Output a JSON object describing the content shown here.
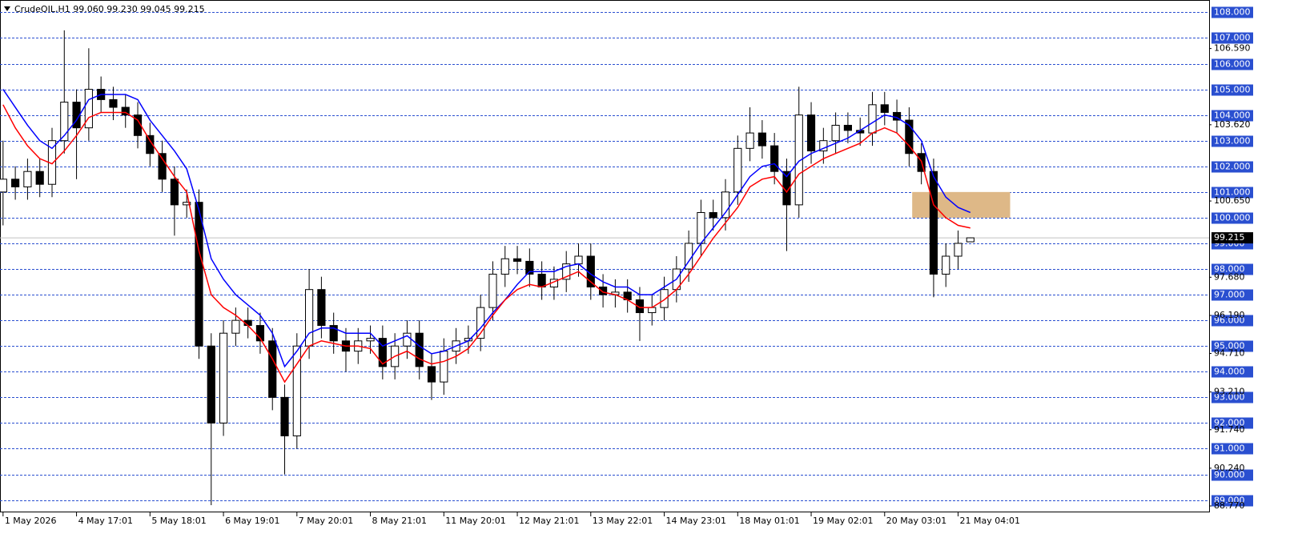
{
  "chart_data": {
    "type": "candlestick",
    "title": "CrudeOIL,H1  99.060 99.230 99.045 99.215",
    "x": [
      1,
      5,
      9,
      13,
      17,
      21,
      25,
      29,
      33,
      37,
      41,
      45,
      49,
      53,
      57,
      61,
      65,
      69,
      73,
      77,
      81,
      85,
      89,
      93,
      97,
      101,
      105,
      109,
      113,
      117,
      121,
      125,
      129,
      133,
      137,
      141,
      145,
      149,
      153,
      157,
      161,
      165,
      169,
      173,
      177,
      181,
      185,
      189,
      193,
      197,
      201,
      205,
      209,
      213,
      217,
      221,
      225,
      229,
      233,
      237,
      241,
      245,
      249,
      253,
      257,
      261,
      265,
      269,
      273,
      277,
      281,
      285,
      289,
      293,
      297,
      301,
      305,
      309,
      313,
      317
    ],
    "open": [
      101,
      101.5,
      101.2,
      101.8,
      101.3,
      103,
      104.5,
      103.5,
      105,
      104.6,
      104.3,
      104,
      103.2,
      102.5,
      101.5,
      100.5,
      100.6,
      95,
      92,
      95.5,
      96,
      95.8,
      95.2,
      93,
      91.5,
      95,
      97.2,
      95.8,
      95.2,
      94.8,
      95.2,
      95.3,
      94.2,
      95,
      95.5,
      94.2,
      93.6,
      94.8,
      95.2,
      95.3,
      96.5,
      97.8,
      98.4,
      98.3,
      97.8,
      97.3,
      97.6,
      98.2,
      98.5,
      97.3,
      97,
      97.1,
      96.8,
      96.3,
      96.5,
      97.2,
      98,
      99,
      100.2,
      100,
      101,
      102.7,
      103.3,
      102.8,
      101.8,
      100.5,
      104,
      102.6,
      103,
      103.6,
      103.4,
      103.3,
      104.4,
      104.1,
      103.8,
      102.5,
      101.8,
      97.8,
      98.5,
      99.06
    ],
    "high": [
      103,
      102,
      102.3,
      102.3,
      103.5,
      107.3,
      105,
      106.6,
      105.5,
      105.1,
      104.8,
      104.5,
      103.7,
      103,
      102,
      101.1,
      101.1,
      95.5,
      96,
      96.5,
      96.5,
      96.3,
      95.7,
      93.5,
      95.5,
      98,
      97.7,
      96.3,
      95.7,
      95.7,
      95.8,
      95.8,
      95.5,
      96,
      96,
      94.7,
      95.3,
      95.7,
      95.8,
      97,
      98.3,
      98.9,
      98.9,
      98.8,
      98.3,
      98.1,
      98.7,
      99,
      99,
      97.8,
      97.6,
      97.6,
      97.3,
      97,
      97.7,
      98.5,
      99.5,
      100.7,
      100.7,
      101.5,
      103.2,
      104.3,
      103.8,
      103.3,
      102.3,
      105.1,
      104.5,
      103.5,
      104.1,
      104.1,
      103.9,
      104.9,
      104.9,
      104.6,
      104.3,
      102.9,
      102.3,
      99,
      99.5,
      99.23
    ],
    "low": [
      99.7,
      100.7,
      100.7,
      100.8,
      100.8,
      102.5,
      101.5,
      103,
      104.1,
      103.8,
      103.5,
      102.7,
      102,
      101,
      99.3,
      100,
      94.5,
      88.8,
      91.5,
      95,
      95.3,
      94.7,
      92.5,
      90,
      91,
      94.5,
      95.3,
      94.7,
      94,
      94.3,
      94.7,
      93.7,
      93.7,
      94.5,
      93.7,
      92.9,
      93.1,
      94.3,
      94.7,
      94.8,
      96,
      97.3,
      97.8,
      97.3,
      96.8,
      96.8,
      97.1,
      97.7,
      96.8,
      96.5,
      96.5,
      96.3,
      95.2,
      95.8,
      96,
      96.7,
      97.5,
      98.5,
      99.5,
      99.5,
      100.5,
      102.2,
      102.3,
      101.3,
      98.7,
      100,
      102.1,
      102.1,
      102.5,
      102.9,
      102.8,
      102.8,
      103.6,
      103.3,
      102,
      101.3,
      96.9,
      97.3,
      98,
      99.045
    ],
    "close": [
      101.5,
      101.2,
      101.8,
      101.3,
      103,
      104.5,
      103.5,
      105,
      104.6,
      104.3,
      104,
      103.2,
      102.5,
      101.5,
      100.5,
      100.6,
      95,
      92,
      95.5,
      96,
      95.8,
      95.2,
      93,
      91.5,
      95,
      97.2,
      95.8,
      95.2,
      94.8,
      95.2,
      95.3,
      94.2,
      95,
      95.5,
      94.2,
      93.6,
      94.8,
      95.2,
      95.3,
      96.5,
      97.8,
      98.4,
      98.3,
      97.8,
      97.3,
      97.6,
      98.2,
      98.5,
      97.3,
      97,
      97.1,
      96.8,
      96.3,
      96.5,
      97.2,
      98,
      99,
      100.2,
      100,
      101,
      102.7,
      103.3,
      102.8,
      101.8,
      100.5,
      104,
      102.6,
      103,
      103.6,
      103.4,
      103.3,
      104.4,
      104.1,
      103.8,
      102.5,
      101.8,
      97.8,
      98.5,
      99,
      99.215
    ],
    "series": [
      {
        "color": "#0000ff",
        "values": [
          105,
          104.3,
          103.6,
          103,
          102.7,
          103.2,
          103.8,
          104.6,
          104.8,
          104.8,
          104.8,
          104.6,
          103.8,
          103.2,
          102.6,
          101.9,
          100.3,
          98.4,
          97.6,
          97,
          96.6,
          96.2,
          95.5,
          94.2,
          94.8,
          95.5,
          95.7,
          95.7,
          95.5,
          95.5,
          95.5,
          95,
          95.2,
          95.4,
          95,
          94.7,
          94.8,
          95,
          95.2,
          95.7,
          96.3,
          96.8,
          97.4,
          97.9,
          97.9,
          97.9,
          98.1,
          98.2,
          97.8,
          97.5,
          97.3,
          97.3,
          97,
          97,
          97.3,
          97.6,
          98.3,
          99,
          99.6,
          100.2,
          100.9,
          101.6,
          102,
          102.1,
          101.6,
          102.2,
          102.5,
          102.7,
          102.9,
          103.1,
          103.4,
          103.7,
          104,
          103.9,
          103.6,
          103,
          101.6,
          100.8,
          100.4,
          100.2
        ]
      },
      {
        "color": "#ff0000",
        "values": [
          104.4,
          103.5,
          102.8,
          102.3,
          102.1,
          102.6,
          103.2,
          103.9,
          104.1,
          104.1,
          104.1,
          103.8,
          103,
          102.3,
          101.6,
          101,
          98.7,
          97,
          96.5,
          96.2,
          95.8,
          95.3,
          94.5,
          93.6,
          94.3,
          95,
          95.2,
          95.1,
          95,
          95,
          94.9,
          94.3,
          94.6,
          94.8,
          94.5,
          94.3,
          94.4,
          94.6,
          94.9,
          95.5,
          96.2,
          96.8,
          97.2,
          97.4,
          97.3,
          97.5,
          97.7,
          97.9,
          97.5,
          97.1,
          97,
          96.8,
          96.5,
          96.5,
          96.8,
          97.2,
          97.8,
          98.5,
          99.2,
          99.8,
          100.4,
          101.2,
          101.5,
          101.6,
          101,
          101.7,
          102,
          102.3,
          102.5,
          102.7,
          102.9,
          103.3,
          103.5,
          103.3,
          102.8,
          102.2,
          100.5,
          100,
          99.7,
          99.6
        ]
      }
    ],
    "xlim": [
      0,
      395
    ],
    "ylim": [
      88.52,
      108.48
    ],
    "xticks": [
      {
        "value": 1,
        "label": "1 May 2026"
      },
      {
        "value": 25,
        "label": "4 May 17:01"
      },
      {
        "value": 49,
        "label": "5 May 18:01"
      },
      {
        "value": 73,
        "label": "6 May 19:01"
      },
      {
        "value": 97,
        "label": "7 May 20:01"
      },
      {
        "value": 121,
        "label": "8 May 21:01"
      },
      {
        "value": 145,
        "label": "11 May 20:01"
      },
      {
        "value": 169,
        "label": "12 May 21:01"
      },
      {
        "value": 193,
        "label": "13 May 22:01"
      },
      {
        "value": 217,
        "label": "14 May 23:01"
      },
      {
        "value": 241,
        "label": "18 May 01:01"
      },
      {
        "value": 265,
        "label": "19 May 02:01"
      },
      {
        "value": 289,
        "label": "20 May 03:01"
      },
      {
        "value": 313,
        "label": "21 May 04:01"
      }
    ],
    "yticks": [
      {
        "value": 108,
        "label": "108.000"
      },
      {
        "value": 107,
        "label": "107.000"
      },
      {
        "value": 106,
        "label": "106.000"
      },
      {
        "value": 105,
        "label": "105.000"
      },
      {
        "value": 104,
        "label": "104.000"
      },
      {
        "value": 103,
        "label": "103.000"
      },
      {
        "value": 102,
        "label": "102.000"
      },
      {
        "value": 101,
        "label": "101.000"
      },
      {
        "value": 100,
        "label": "100.000"
      },
      {
        "value": 99,
        "label": "99.000"
      },
      {
        "value": 98,
        "label": "98.000"
      },
      {
        "value": 97,
        "label": "97.000"
      },
      {
        "value": 96,
        "label": "96.000"
      },
      {
        "value": 95,
        "label": "95.000"
      },
      {
        "value": 94,
        "label": "94.000"
      },
      {
        "value": 93,
        "label": "93.000"
      },
      {
        "value": 92,
        "label": "92.000"
      },
      {
        "value": 91,
        "label": "91.000"
      },
      {
        "value": 90,
        "label": "90.000"
      },
      {
        "value": 89,
        "label": "89.000"
      }
    ],
    "yticks_minor": [
      {
        "value": 106.59,
        "label": "106.590"
      },
      {
        "value": 103.62,
        "label": "103.620"
      },
      {
        "value": 100.65,
        "label": "100.650"
      },
      {
        "value": 97.68,
        "label": "97.680"
      },
      {
        "value": 96.19,
        "label": "96.190"
      },
      {
        "value": 94.71,
        "label": "94.710"
      },
      {
        "value": 93.21,
        "label": "93.210"
      },
      {
        "value": 91.74,
        "label": "91.740"
      },
      {
        "value": 90.24,
        "label": "90.240"
      },
      {
        "value": 88.77,
        "label": "88.770"
      }
    ],
    "current_price": {
      "value": 99.215,
      "label": "99.215"
    },
    "zone": {
      "x": [
        298,
        330
      ],
      "y": [
        100,
        101
      ],
      "color": "#deb887"
    },
    "grid_color": "#2a4fd0"
  }
}
